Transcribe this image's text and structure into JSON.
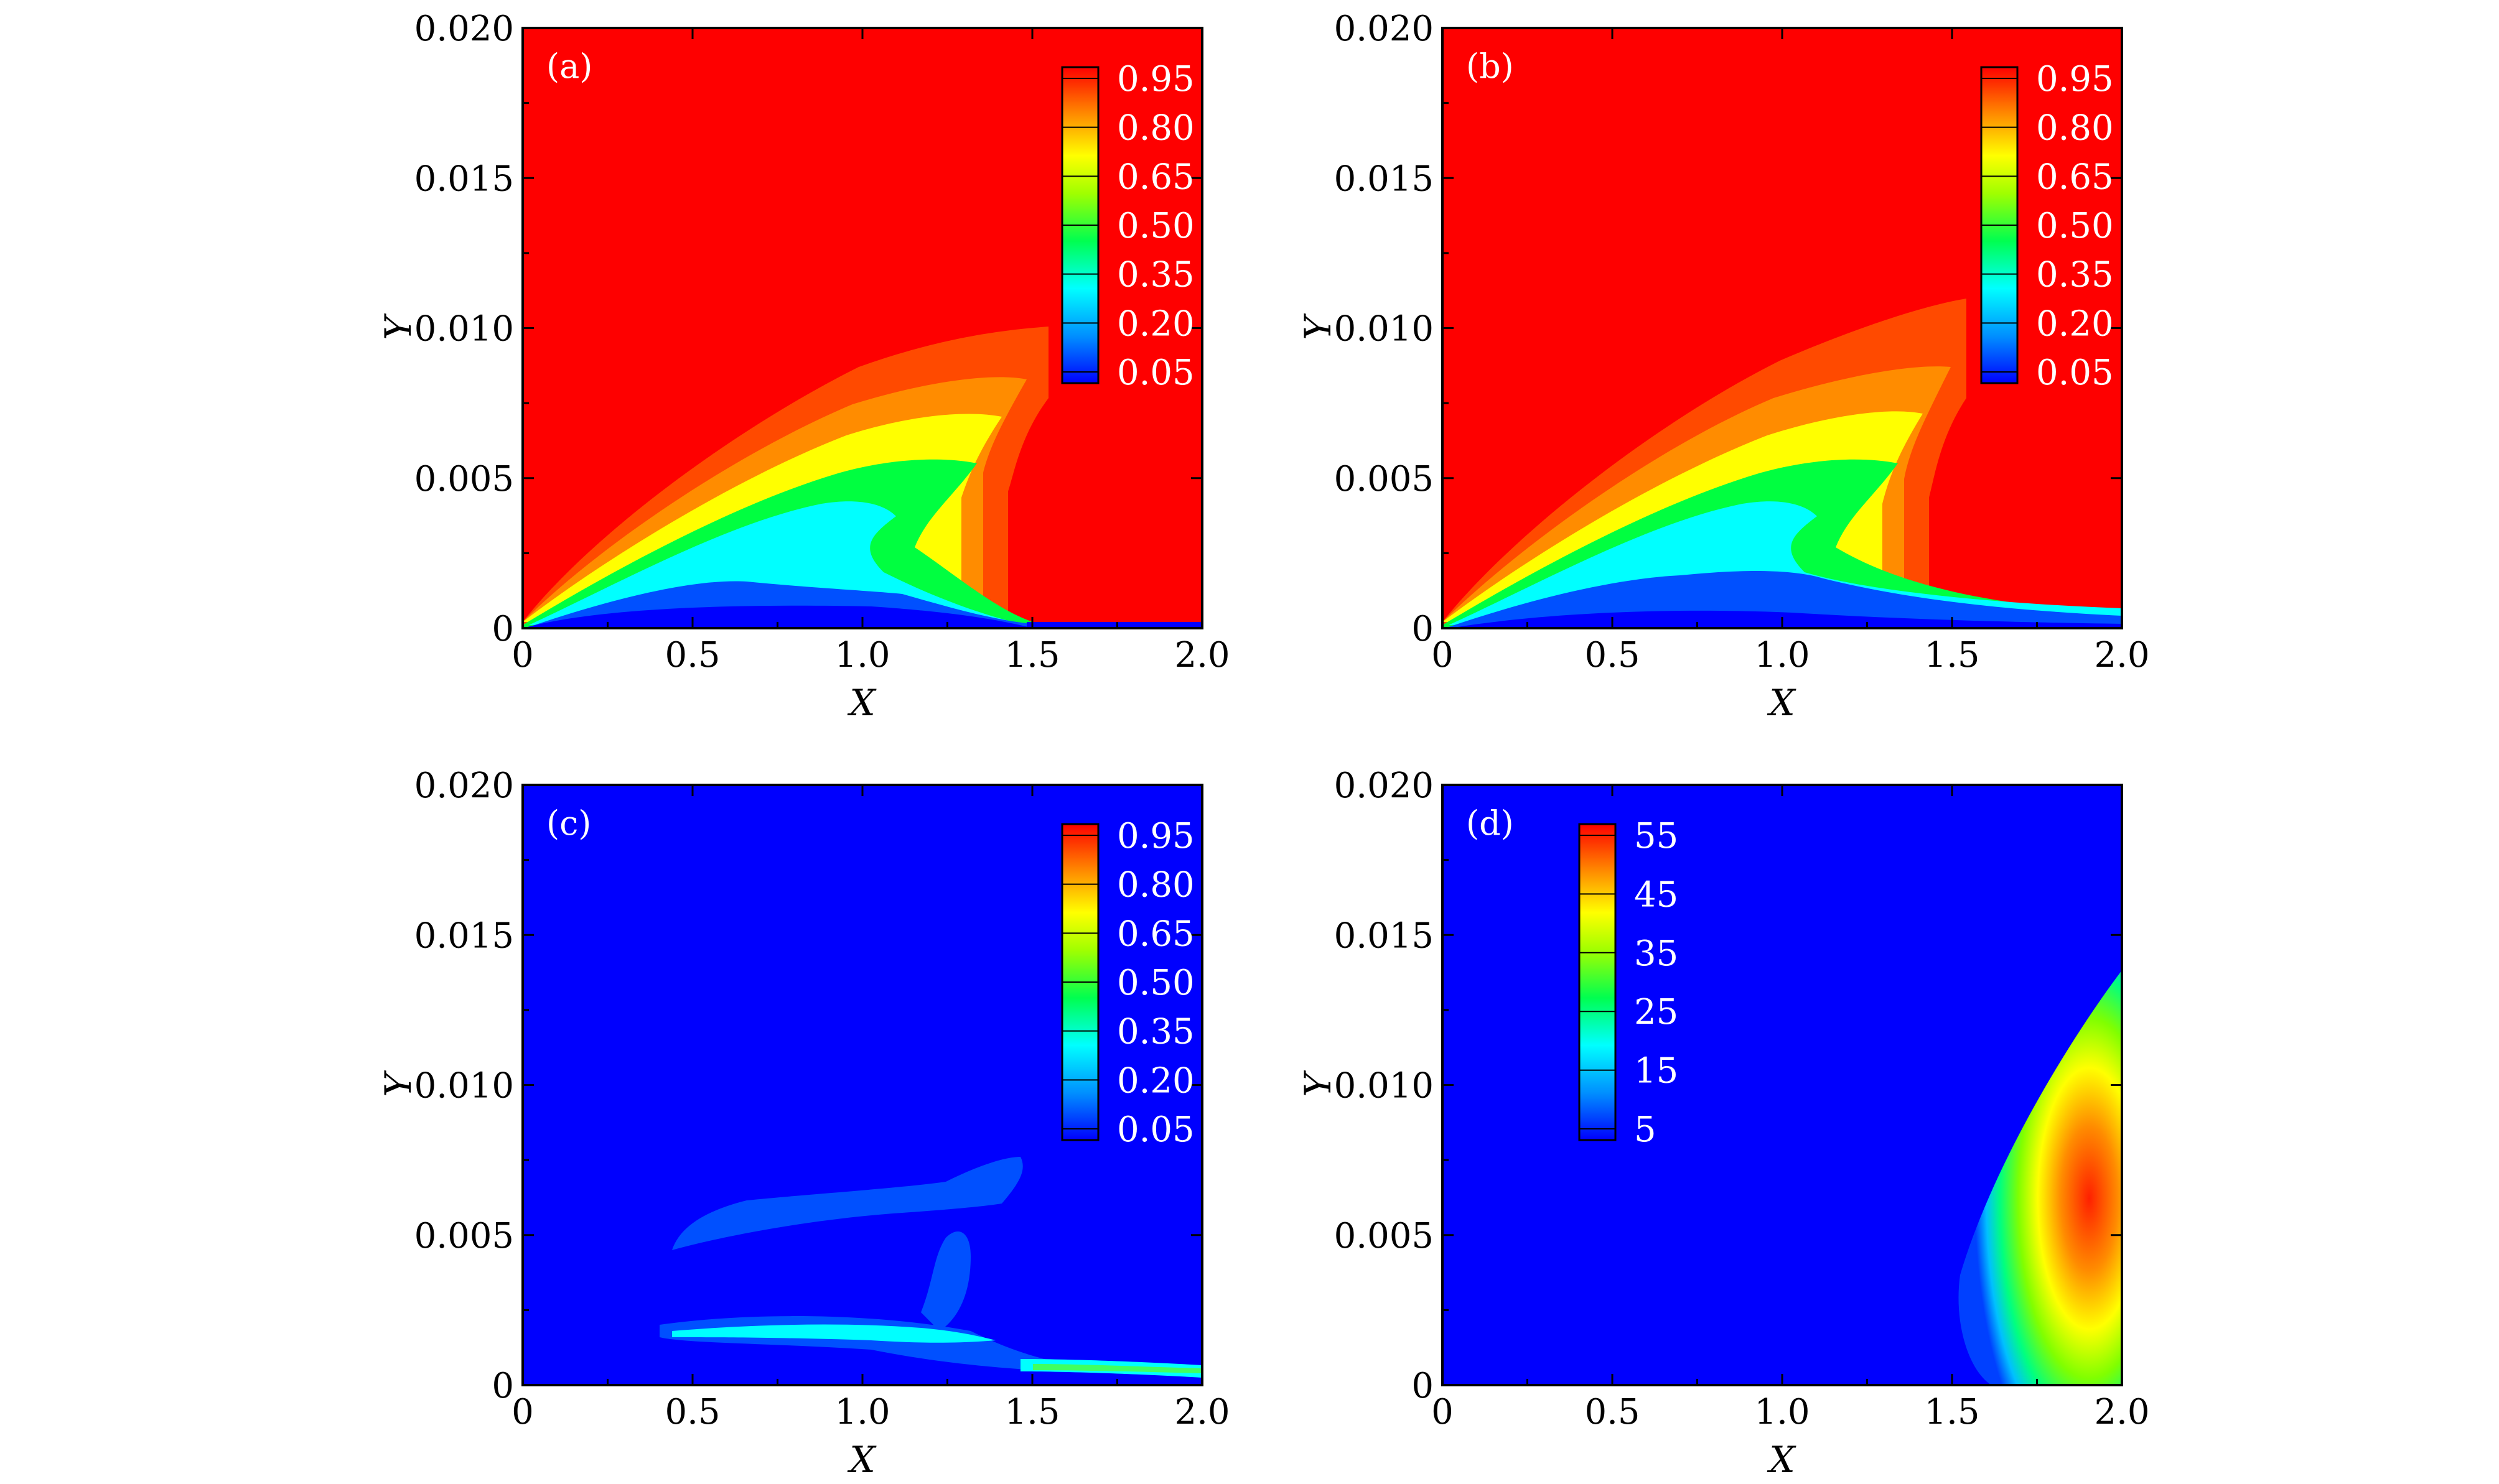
{
  "figure": {
    "colors": {
      "red": "#fe0000",
      "blue": "#0000fe",
      "frame": "#000000",
      "label_text": "#ffffff"
    }
  },
  "chart_data": [
    {
      "type": "heatmap",
      "panel_label": "(a)",
      "xlabel": "X",
      "ylabel": "Y",
      "xlim": [
        0,
        2.0
      ],
      "ylim": [
        0,
        0.02
      ],
      "xticks": [
        "0",
        "0.5",
        "1.0",
        "1.5",
        "2.0"
      ],
      "yticks": [
        "0",
        "0.005",
        "0.010",
        "0.015",
        "0.020"
      ],
      "colorbar": {
        "labels": [
          "0.95",
          "0.80",
          "0.65",
          "0.50",
          "0.35",
          "0.20",
          "0.05"
        ],
        "placement": "top-right"
      },
      "background_level": 1.0
    },
    {
      "type": "heatmap",
      "panel_label": "(b)",
      "xlabel": "X",
      "ylabel": "Y",
      "xlim": [
        0,
        2.0
      ],
      "ylim": [
        0,
        0.02
      ],
      "xticks": [
        "0",
        "0.5",
        "1.0",
        "1.5",
        "2.0"
      ],
      "yticks": [
        "0",
        "0.005",
        "0.010",
        "0.015",
        "0.020"
      ],
      "colorbar": {
        "labels": [
          "0.95",
          "0.80",
          "0.65",
          "0.50",
          "0.35",
          "0.20",
          "0.05"
        ],
        "placement": "top-right"
      },
      "background_level": 1.0
    },
    {
      "type": "heatmap",
      "panel_label": "(c)",
      "xlabel": "X",
      "ylabel": "Y",
      "xlim": [
        0,
        2.0
      ],
      "ylim": [
        0,
        0.02
      ],
      "xticks": [
        "0",
        "0.5",
        "1.0",
        "1.5",
        "2.0"
      ],
      "yticks": [
        "0",
        "0.005",
        "0.010",
        "0.015",
        "0.020"
      ],
      "colorbar": {
        "labels": [
          "0.95",
          "0.80",
          "0.65",
          "0.50",
          "0.35",
          "0.20",
          "0.05"
        ],
        "placement": "top-right"
      },
      "background_level": 0.0
    },
    {
      "type": "heatmap",
      "panel_label": "(d)",
      "xlabel": "X",
      "ylabel": "Y",
      "xlim": [
        0,
        2.0
      ],
      "ylim": [
        0,
        0.02
      ],
      "xticks": [
        "0",
        "0.5",
        "1.0",
        "1.5",
        "2.0"
      ],
      "yticks": [
        "0",
        "0.005",
        "0.010",
        "0.015",
        "0.020"
      ],
      "colorbar": {
        "labels": [
          "55",
          "45",
          "35",
          "25",
          "15",
          "5"
        ],
        "placement": "top-left"
      },
      "background_level": 0.0
    }
  ]
}
